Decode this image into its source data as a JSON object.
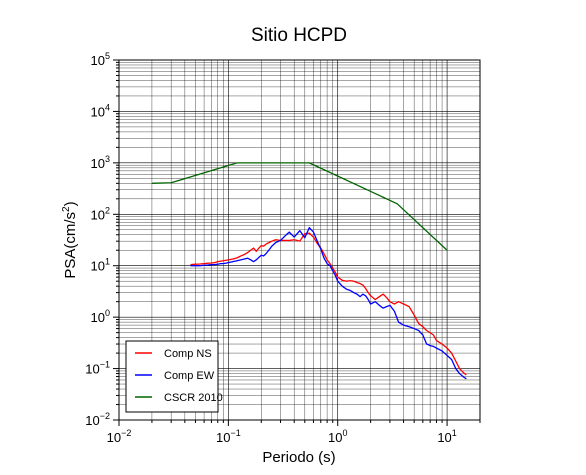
{
  "chart_data": {
    "type": "line",
    "title": "Sitio HCPD",
    "xlabel": "Periodo (s)",
    "ylabel_main": "PSA(cm/s",
    "ylabel_sup": "2",
    "ylabel_close": ")",
    "x_scale": "log",
    "y_scale": "log",
    "xlim": [
      0.01,
      20
    ],
    "ylim": [
      0.01,
      100000
    ],
    "grid": true,
    "legend_position": "bottom-left",
    "x_ticks": [
      {
        "value": 0.01,
        "base": "10",
        "exp": "−2"
      },
      {
        "value": 0.1,
        "base": "10",
        "exp": "−1"
      },
      {
        "value": 1,
        "base": "10",
        "exp": "0"
      },
      {
        "value": 10,
        "base": "10",
        "exp": "1"
      }
    ],
    "y_ticks": [
      {
        "value": 0.01,
        "base": "10",
        "exp": "−2"
      },
      {
        "value": 0.1,
        "base": "10",
        "exp": "−1"
      },
      {
        "value": 1,
        "base": "10",
        "exp": "0"
      },
      {
        "value": 10,
        "base": "10",
        "exp": "1"
      },
      {
        "value": 100,
        "base": "10",
        "exp": "2"
      },
      {
        "value": 1000,
        "base": "10",
        "exp": "3"
      },
      {
        "value": 10000,
        "base": "10",
        "exp": "4"
      },
      {
        "value": 100000,
        "base": "10",
        "exp": "5"
      }
    ],
    "series": [
      {
        "name": "Comp NS",
        "color": "#ff0000",
        "x": [
          0.045,
          0.05,
          0.055,
          0.06,
          0.065,
          0.07,
          0.075,
          0.08,
          0.085,
          0.09,
          0.1,
          0.11,
          0.12,
          0.13,
          0.14,
          0.15,
          0.16,
          0.17,
          0.18,
          0.19,
          0.2,
          0.21,
          0.22,
          0.23,
          0.25,
          0.27,
          0.3,
          0.33,
          0.36,
          0.4,
          0.45,
          0.5,
          0.55,
          0.6,
          0.65,
          0.7,
          0.75,
          0.8,
          0.85,
          0.9,
          0.95,
          1.0,
          1.1,
          1.2,
          1.3,
          1.4,
          1.5,
          1.6,
          1.7,
          1.8,
          1.9,
          2.0,
          2.2,
          2.4,
          2.6,
          2.8,
          3.0,
          3.3,
          3.6,
          4.0,
          4.5,
          5.0,
          5.5,
          6.0,
          6.5,
          7.0,
          7.5,
          8.0,
          9.0,
          10.0,
          11.0,
          12.0,
          13.0,
          14.0,
          15.0
        ],
        "y": [
          10.5,
          10.7,
          10.8,
          11,
          11.2,
          11.3,
          11.5,
          12,
          12.3,
          12.5,
          13,
          13.5,
          14.2,
          15.5,
          16.5,
          18,
          20,
          22,
          19,
          22,
          24.5,
          24,
          26,
          27.5,
          30,
          32,
          31,
          31,
          31,
          32,
          30,
          42,
          43,
          36,
          27,
          22,
          17,
          13,
          11,
          9,
          7.5,
          6,
          5.2,
          5,
          5.1,
          5,
          4.7,
          4.5,
          4.2,
          3.6,
          3,
          2.6,
          2.2,
          2.5,
          2.8,
          2.4,
          2,
          1.8,
          2,
          1.8,
          1.6,
          1.1,
          0.75,
          0.65,
          0.55,
          0.5,
          0.45,
          0.35,
          0.3,
          0.25,
          0.2,
          0.14,
          0.1,
          0.085,
          0.075
        ]
      },
      {
        "name": "Comp EW",
        "color": "#0000ff",
        "x": [
          0.045,
          0.05,
          0.055,
          0.06,
          0.065,
          0.07,
          0.075,
          0.08,
          0.085,
          0.09,
          0.1,
          0.11,
          0.12,
          0.13,
          0.14,
          0.15,
          0.16,
          0.17,
          0.18,
          0.19,
          0.2,
          0.21,
          0.22,
          0.23,
          0.25,
          0.27,
          0.3,
          0.33,
          0.36,
          0.4,
          0.45,
          0.5,
          0.55,
          0.6,
          0.65,
          0.7,
          0.75,
          0.8,
          0.85,
          0.9,
          0.95,
          1.0,
          1.1,
          1.2,
          1.3,
          1.4,
          1.5,
          1.6,
          1.7,
          1.8,
          1.9,
          2.0,
          2.2,
          2.4,
          2.6,
          2.8,
          3.0,
          3.3,
          3.6,
          4.0,
          4.5,
          5.0,
          5.5,
          6.0,
          6.5,
          7.0,
          7.5,
          8.0,
          9.0,
          10.0,
          11.0,
          12.0,
          13.0,
          14.0,
          15.0
        ],
        "y": [
          10,
          10,
          10,
          10.2,
          10.3,
          10.5,
          10.5,
          10.7,
          11,
          11,
          11.5,
          12,
          12.5,
          13,
          13.5,
          14,
          13,
          12,
          13,
          14.5,
          16,
          15.5,
          17,
          19,
          24,
          28,
          31,
          38,
          45,
          36,
          48,
          35,
          55,
          45,
          30,
          21,
          14,
          11,
          10,
          8,
          6.5,
          5,
          4,
          3.5,
          3.3,
          3,
          2.8,
          2.5,
          2.8,
          2.6,
          2.2,
          1.8,
          2,
          1.7,
          1.5,
          1.6,
          1.7,
          1.3,
          0.8,
          0.7,
          0.65,
          0.6,
          0.55,
          0.45,
          0.3,
          0.28,
          0.27,
          0.25,
          0.22,
          0.18,
          0.15,
          0.1,
          0.08,
          0.07,
          0.063
        ]
      },
      {
        "name": "CSCR 2010",
        "color": "#006400",
        "x": [
          0.02,
          0.03,
          0.12,
          0.55,
          3.5,
          10
        ],
        "y": [
          400,
          410,
          1000,
          1000,
          160,
          20
        ]
      }
    ]
  }
}
